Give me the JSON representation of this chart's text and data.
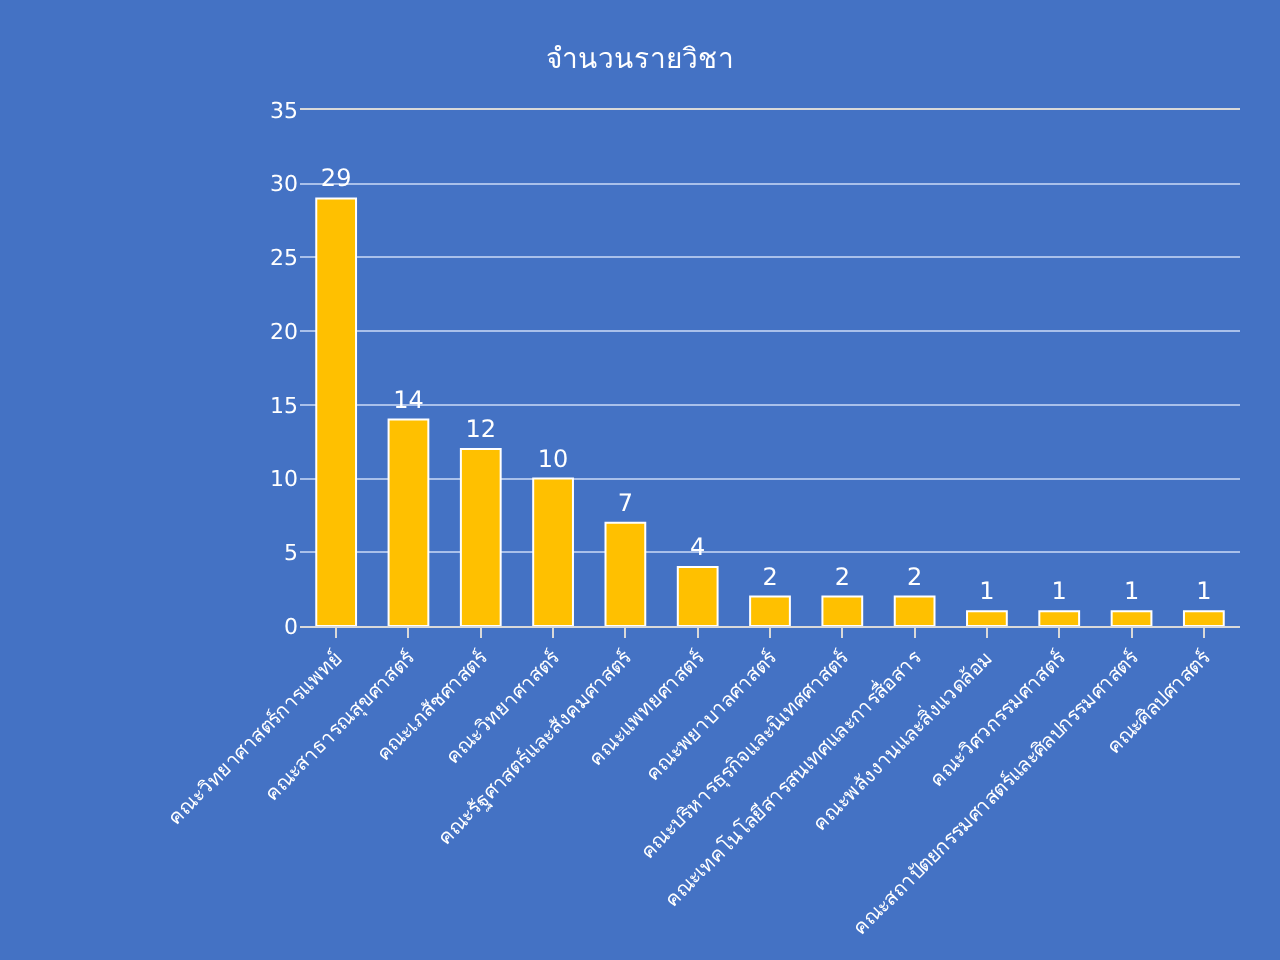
{
  "chart_data": {
    "type": "bar",
    "title": "จำนวนรายวิชา",
    "categories": [
      "คณะวิทยาศาสตร์การแพทย์",
      "คณะสาธารณสุขศาสตร์",
      "คณะเภสัชศาสตร์",
      "คณะวิทยาศาสตร์",
      "คณะรัฐศาสตร์และสังคมศาสตร์",
      "คณะแพทยศาสตร์",
      "คณะพยาบาลศาสตร์",
      "คณะบริหารธุรกิจและนิเทศศาสตร์",
      "คณะเทคโนโลยีสารสนเทศและการสื่อสาร",
      "คณะพลังงานและสิ่งแวดล้อม",
      "คณะวิศวกรรมศาสตร์",
      "คณะสถาปัตยกรรมศาสตร์และศิลปกรรมศาสตร์",
      "คณะศิลปศาสตร์"
    ],
    "values": [
      29,
      14,
      12,
      10,
      7,
      4,
      2,
      2,
      2,
      1,
      1,
      1,
      1
    ],
    "color": "#ffc000",
    "ylim": [
      0,
      35
    ],
    "yticks": [
      0,
      5,
      10,
      15,
      20,
      25,
      30,
      35
    ],
    "grid": "y",
    "data_labels": true,
    "legend": false
  }
}
